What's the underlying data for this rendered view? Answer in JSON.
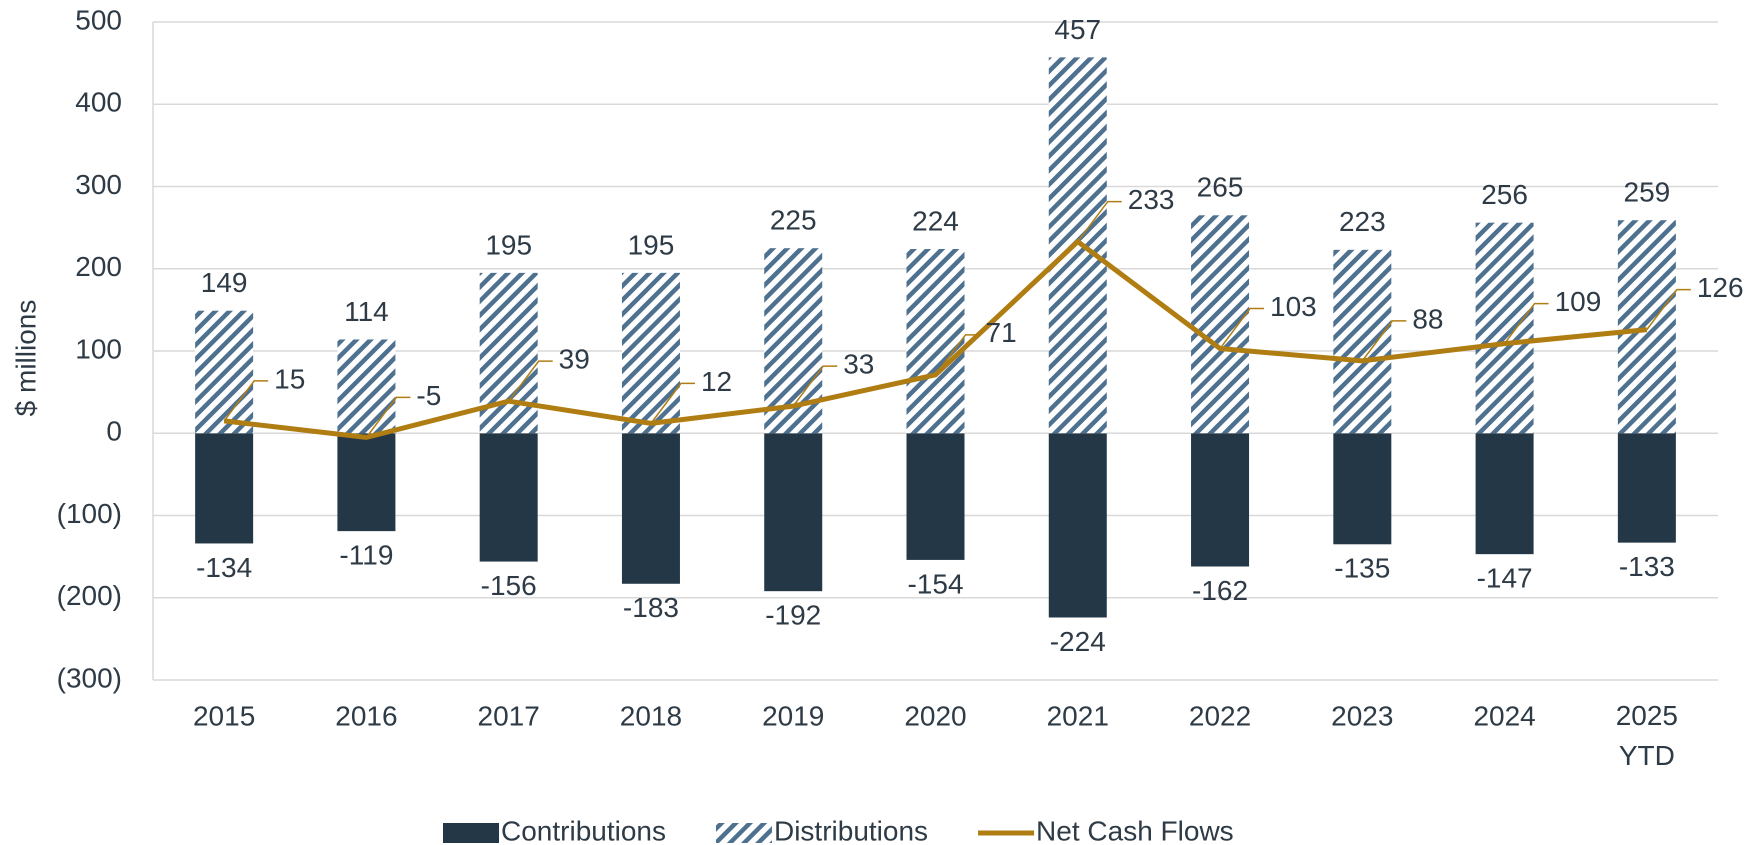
{
  "chart_data": {
    "type": "bar",
    "y_label": "$ millions",
    "categories": [
      "2015",
      "2016",
      "2017",
      "2018",
      "2019",
      "2020",
      "2021",
      "2022",
      "2023",
      "2024",
      "2025 YTD"
    ],
    "series": [
      {
        "name": "Contributions",
        "type": "bar",
        "pattern": "solid",
        "color": "#243746",
        "values": [
          -134,
          -119,
          -156,
          -183,
          -192,
          -154,
          -224,
          -162,
          -135,
          -147,
          -133
        ]
      },
      {
        "name": "Distributions",
        "type": "bar",
        "pattern": "hatch",
        "color": "#4f7190",
        "values": [
          149,
          114,
          195,
          195,
          225,
          224,
          457,
          265,
          223,
          256,
          259
        ]
      },
      {
        "name": "Net Cash Flows",
        "type": "line",
        "color": "#b07d12",
        "values": [
          15,
          -5,
          39,
          12,
          33,
          71,
          233,
          103,
          88,
          109,
          126
        ]
      }
    ],
    "ylim": [
      -300,
      500
    ],
    "yticks": [
      {
        "value": -300,
        "label": "(300)"
      },
      {
        "value": -200,
        "label": "(200)"
      },
      {
        "value": -100,
        "label": "(100)"
      },
      0,
      100,
      200,
      300,
      400,
      500
    ],
    "grid": true,
    "legend": "bottom"
  }
}
